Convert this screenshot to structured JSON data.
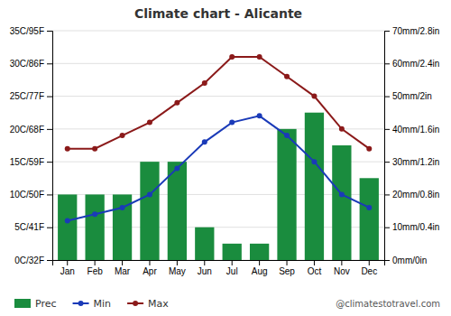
{
  "chart_data": {
    "type": "bar",
    "title": "Climate chart - Alicante",
    "categories": [
      "Jan",
      "Feb",
      "Mar",
      "Apr",
      "May",
      "Jun",
      "Jul",
      "Aug",
      "Sep",
      "Oct",
      "Nov",
      "Dec"
    ],
    "series": [
      {
        "name": "Prec",
        "type": "bar",
        "axis": "y2",
        "color": "#1a8c3e",
        "values": [
          20,
          20,
          20,
          30,
          30,
          10,
          5,
          5,
          40,
          45,
          35,
          25
        ]
      },
      {
        "name": "Min",
        "type": "line",
        "marker": "circle",
        "color": "#1a3ab8",
        "values": [
          6,
          7,
          8,
          10,
          14,
          18,
          21,
          22,
          19,
          15,
          10,
          8
        ]
      },
      {
        "name": "Max",
        "type": "line",
        "marker": "circle",
        "color": "#8b1a1a",
        "values": [
          17,
          17,
          19,
          21,
          24,
          27,
          31,
          31,
          28,
          25,
          20,
          17
        ]
      }
    ],
    "ylim": [
      0,
      35
    ],
    "yticks": [
      {
        "value": 0,
        "label": "0C/32F"
      },
      {
        "value": 5,
        "label": "5C/41F"
      },
      {
        "value": 10,
        "label": "10C/50F"
      },
      {
        "value": 15,
        "label": "15C/59F"
      },
      {
        "value": 20,
        "label": "20C/68F"
      },
      {
        "value": 25,
        "label": "25C/77F"
      },
      {
        "value": 30,
        "label": "30C/86F"
      },
      {
        "value": 35,
        "label": "35C/95F"
      }
    ],
    "y2lim": [
      0,
      70
    ],
    "y2ticks": [
      {
        "value": 0,
        "label": "0mm/0in"
      },
      {
        "value": 10,
        "label": "10mm/0.4in"
      },
      {
        "value": 20,
        "label": "20mm/0.8in"
      },
      {
        "value": 30,
        "label": "30mm/1.2in"
      },
      {
        "value": 40,
        "label": "40mm/1.6in"
      },
      {
        "value": 50,
        "label": "50mm/2in"
      },
      {
        "value": 60,
        "label": "60mm/2.4in"
      },
      {
        "value": 70,
        "label": "70mm/2.8in"
      }
    ],
    "grid": true,
    "legend": "bottom",
    "annotations": [
      "@climatestotravel.com"
    ]
  }
}
